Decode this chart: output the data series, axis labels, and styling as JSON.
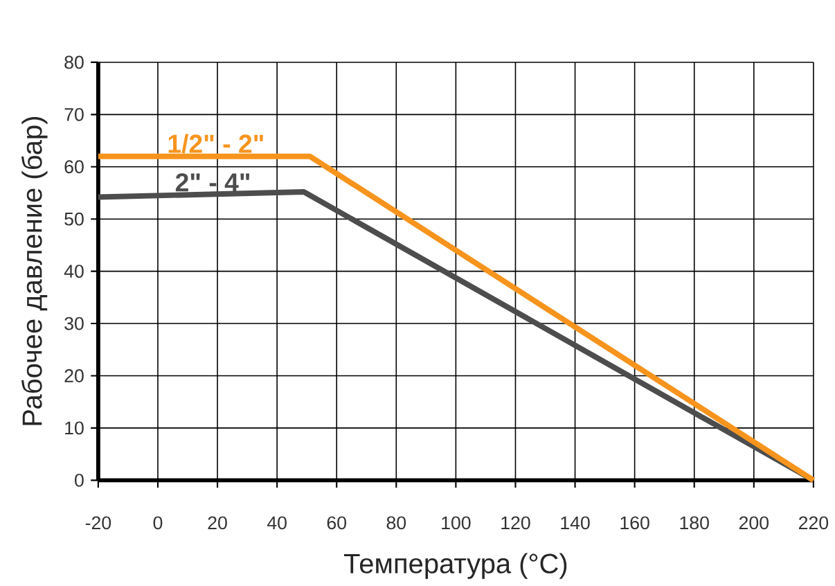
{
  "chart_data": {
    "type": "line",
    "xlabel": "Температура  (°C)",
    "ylabel": "Рабочее давление  (бар)",
    "xlim": [
      -20,
      220
    ],
    "xticks": [
      -20,
      0,
      20,
      40,
      60,
      80,
      100,
      120,
      140,
      160,
      180,
      200,
      220
    ],
    "ylim": [
      0,
      80
    ],
    "yticks": [
      0,
      10,
      20,
      30,
      40,
      50,
      60,
      70,
      80
    ],
    "grid": true,
    "marker": "none",
    "line_style": "solid",
    "series": [
      {
        "name": "1/2\" - 2\"",
        "color": "#f7941d",
        "x": [
          -20,
          51,
          220
        ],
        "values": [
          62,
          62,
          0
        ]
      },
      {
        "name": "2\" - 4\"",
        "color": "#4d4d4d",
        "x": [
          -20,
          49,
          220
        ],
        "values": [
          54.2,
          55.2,
          0
        ]
      }
    ]
  }
}
